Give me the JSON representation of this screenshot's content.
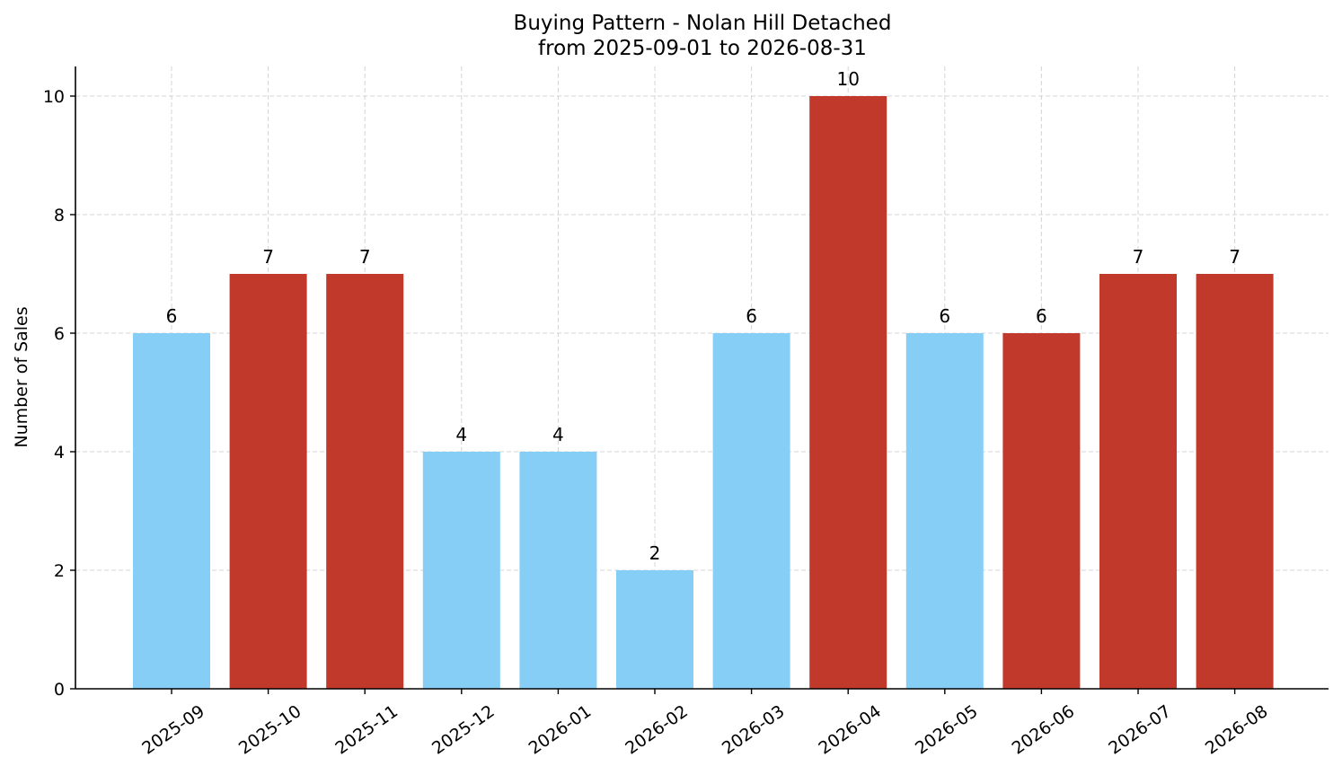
{
  "chart_data": {
    "type": "bar",
    "title": "Buying Pattern - Nolan Hill Detached",
    "subtitle": "from 2025-09-01 to 2026-08-31",
    "xlabel": "",
    "ylabel": "Number of Sales",
    "categories": [
      "2025-09",
      "2025-10",
      "2025-11",
      "2025-12",
      "2026-01",
      "2026-02",
      "2026-03",
      "2026-04",
      "2026-05",
      "2026-06",
      "2026-07",
      "2026-08"
    ],
    "values": [
      6,
      7,
      7,
      4,
      4,
      2,
      6,
      10,
      6,
      6,
      7,
      7
    ],
    "bar_colors": [
      "#87CEF6",
      "#C0392B",
      "#C0392B",
      "#87CEF6",
      "#87CEF6",
      "#87CEF6",
      "#87CEF6",
      "#C0392B",
      "#87CEF6",
      "#C0392B",
      "#C0392B",
      "#C0392B"
    ],
    "ylim": [
      0,
      10.5
    ],
    "yticks": [
      0,
      2,
      4,
      6,
      8,
      10
    ],
    "grid": true,
    "legend": "none"
  }
}
